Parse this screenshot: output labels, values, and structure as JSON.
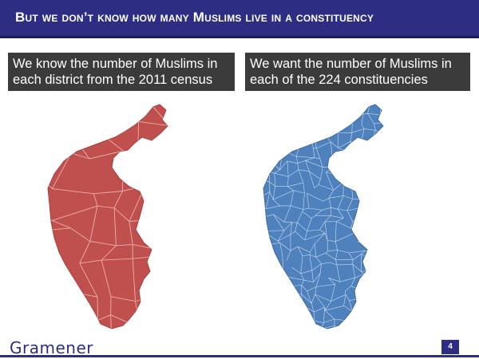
{
  "slide": {
    "title": "But we don’t know how many Muslims live in a constituency",
    "page_number": "4"
  },
  "captions": {
    "left": [
      "We know the number of Muslims in",
      "each district from the 2011 census"
    ],
    "right": [
      "We want the number of Muslims in",
      "each of the 224 constituencies"
    ]
  },
  "maps": {
    "left": {
      "fill": "#c0504d",
      "border": "#e8b0ae"
    },
    "right": {
      "fill": "#4f81bd",
      "border": "#c9dcf2"
    }
  },
  "footer": {
    "logo": "Gramener"
  },
  "colors": {
    "title_bg": "#2d2e83",
    "caption_bg": "#3b3b3b"
  }
}
